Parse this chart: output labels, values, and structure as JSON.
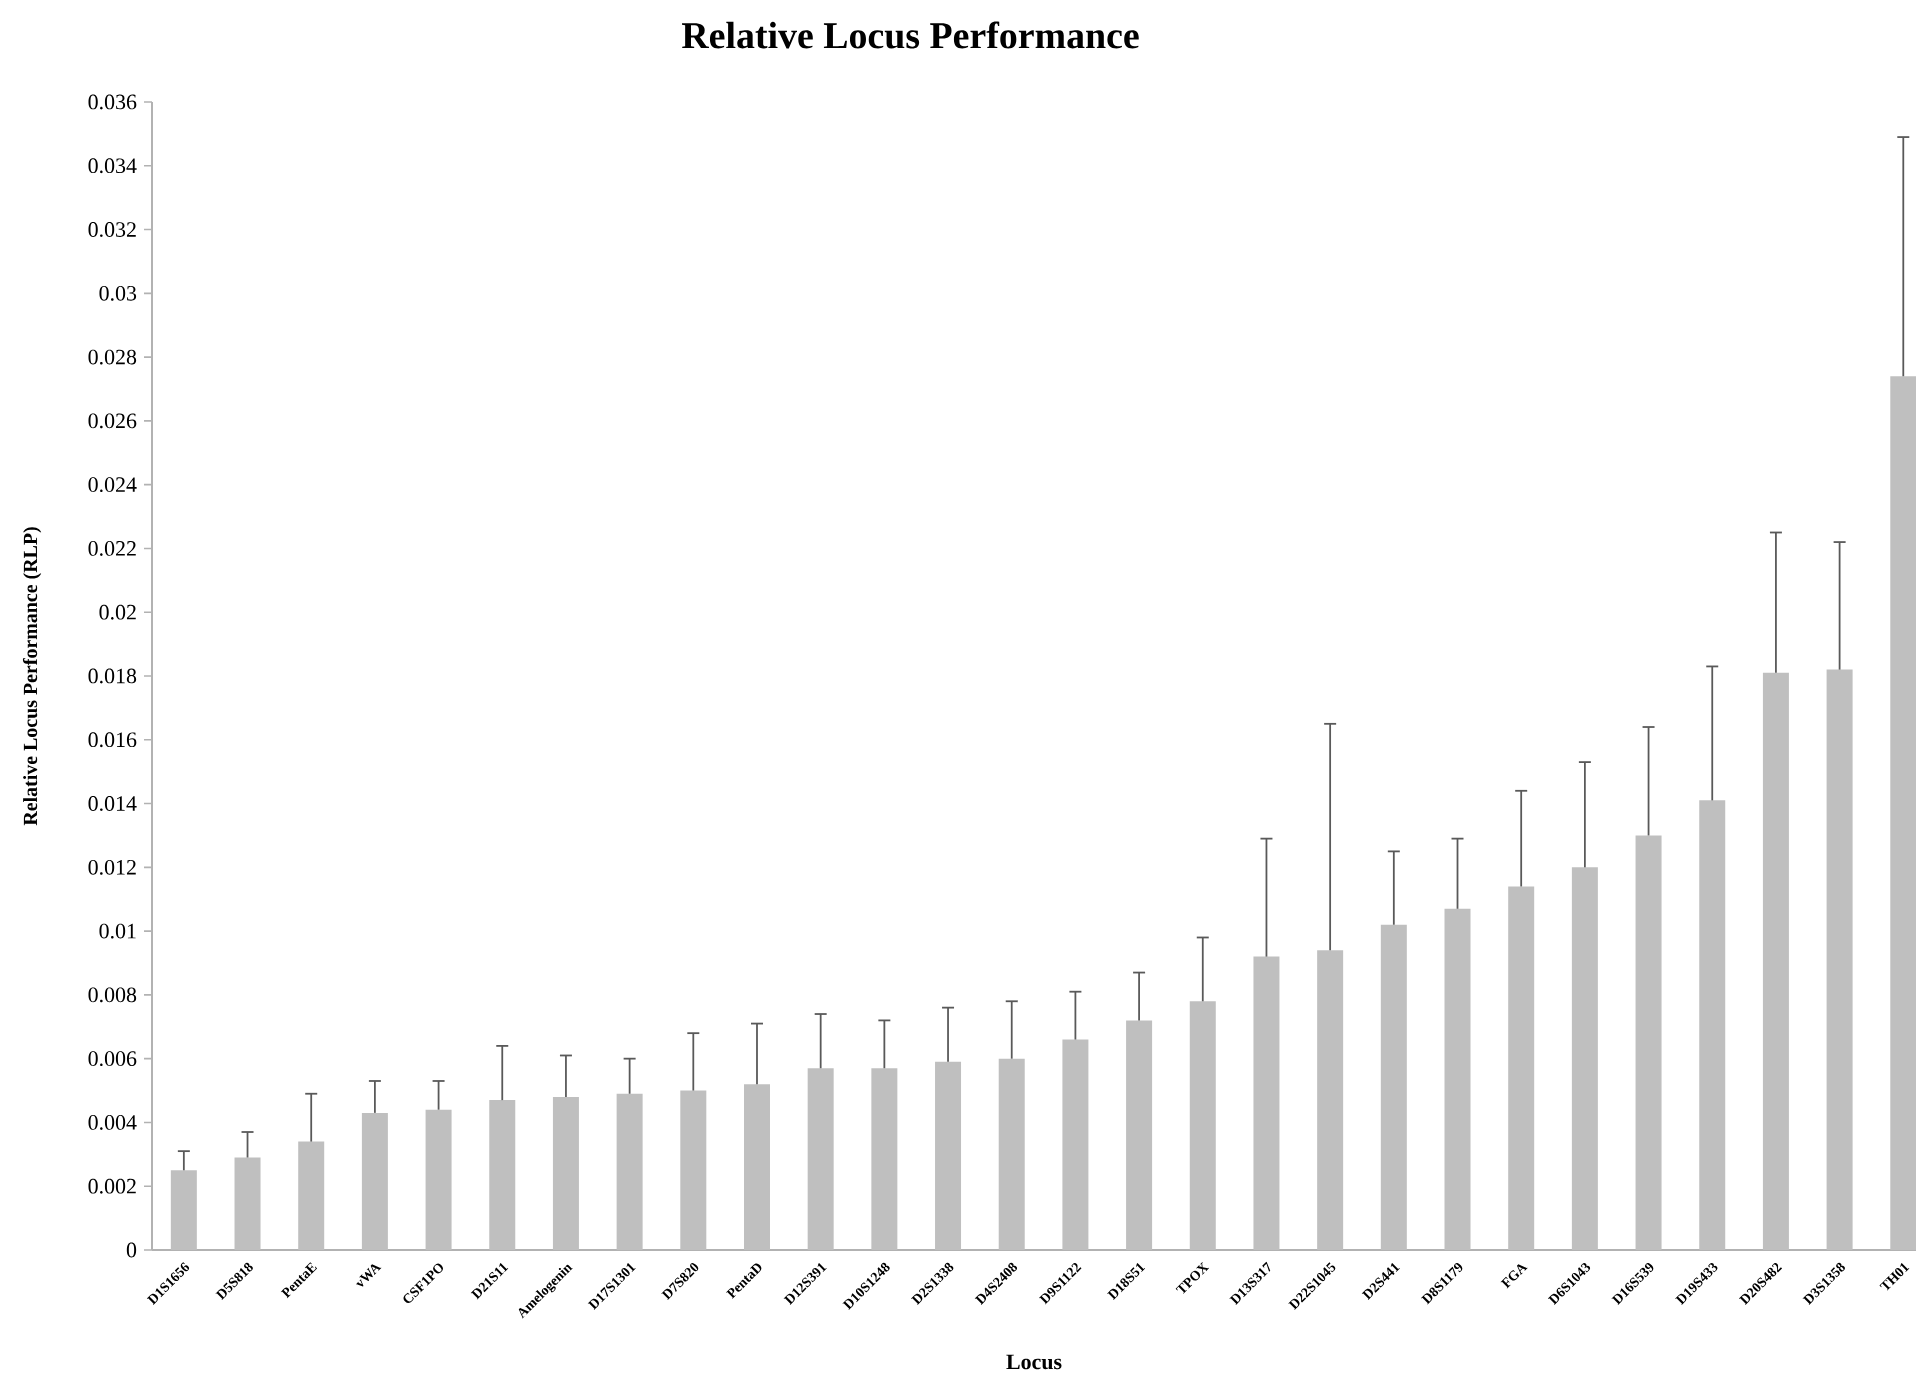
{
  "chart_data": {
    "type": "bar",
    "title": "Relative Locus Performance",
    "xlabel": "Locus",
    "ylabel": "Relative Locus Performance (RLP)",
    "categories": [
      "D1S1656",
      "D5S818",
      "PentaE",
      "vWA",
      "CSF1PO",
      "D21S11",
      "Amelogenin",
      "D17S1301",
      "D7S820",
      "PentaD",
      "D12S391",
      "D10S1248",
      "D2S1338",
      "D4S2408",
      "D9S1122",
      "D18S51",
      "TPOX",
      "D13S317",
      "D22S1045",
      "D2S441",
      "D8S1179",
      "FGA",
      "D6S1043",
      "D16S539",
      "D19S433",
      "D20S482",
      "D3S1358",
      "TH01"
    ],
    "values": [
      0.0025,
      0.0029,
      0.0034,
      0.0043,
      0.0044,
      0.0047,
      0.0048,
      0.0049,
      0.005,
      0.0052,
      0.0057,
      0.0057,
      0.0059,
      0.006,
      0.0066,
      0.0072,
      0.0078,
      0.0092,
      0.0094,
      0.0102,
      0.0107,
      0.0114,
      0.012,
      0.013,
      0.0141,
      0.0181,
      0.0182,
      0.0274
    ],
    "errors": [
      [
        0.0025,
        0.0031
      ],
      [
        0.0029,
        0.0037
      ],
      [
        0.0034,
        0.0049
      ],
      [
        0.0043,
        0.0053
      ],
      [
        0.0044,
        0.0053
      ],
      [
        0.0047,
        0.0064
      ],
      [
        0.0048,
        0.0061
      ],
      [
        0.0049,
        0.006
      ],
      [
        0.005,
        0.0068
      ],
      [
        0.0052,
        0.0071
      ],
      [
        0.0057,
        0.0074
      ],
      [
        0.0057,
        0.0072
      ],
      [
        0.0059,
        0.0076
      ],
      [
        0.006,
        0.0078
      ],
      [
        0.0066,
        0.0081
      ],
      [
        0.0072,
        0.0087
      ],
      [
        0.0078,
        0.0098
      ],
      [
        0.0092,
        0.0129
      ],
      [
        0.0094,
        0.0165
      ],
      [
        0.0102,
        0.0125
      ],
      [
        0.0107,
        0.0129
      ],
      [
        0.0114,
        0.0144
      ],
      [
        0.012,
        0.0153
      ],
      [
        0.013,
        0.0164
      ],
      [
        0.0141,
        0.0183
      ],
      [
        0.0181,
        0.0225
      ],
      [
        0.0182,
        0.0222
      ],
      [
        0.0274,
        0.0349
      ]
    ],
    "color": "#bfbfbf",
    "ylim": [
      0,
      0.036
    ],
    "yticks": [
      0,
      0.002,
      0.004,
      0.006,
      0.008,
      0.01,
      0.012,
      0.014,
      0.016,
      0.018,
      0.02,
      0.022,
      0.024,
      0.026,
      0.028,
      0.03,
      0.032,
      0.034,
      0.036
    ],
    "grid": false
  }
}
